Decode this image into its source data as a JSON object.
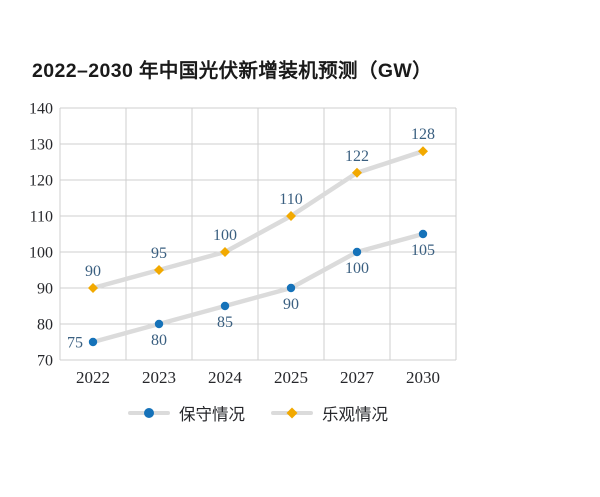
{
  "chart_data": {
    "type": "line",
    "title": "2022–2030 年中国光伏新增装机预测（GW）",
    "categories": [
      "2022",
      "2023",
      "2024",
      "2025",
      "2027",
      "2030"
    ],
    "series": [
      {
        "name": "保守情况",
        "values": [
          75,
          80,
          85,
          90,
          100,
          105
        ],
        "color": "#1572B9",
        "marker": "circle",
        "data_label_positions": [
          "left",
          "below",
          "below",
          "below",
          "below",
          "below"
        ]
      },
      {
        "name": "乐观情况",
        "values": [
          90,
          95,
          100,
          110,
          122,
          128
        ],
        "color": "#F2A900",
        "marker": "diamond",
        "data_label_positions": [
          "above",
          "above",
          "above",
          "above",
          "above",
          "above"
        ]
      }
    ],
    "ylim": [
      70,
      140
    ],
    "yticks": [
      70,
      80,
      90,
      100,
      110,
      120,
      130,
      140
    ],
    "grid": true,
    "legend_position": "bottom",
    "colors": {
      "connector_line": "#DBDBDB",
      "gridline": "#CFCFCF",
      "axis_label": "#26272B",
      "data_label": "#3A5F80",
      "title_text": "#1A1A1A"
    }
  }
}
